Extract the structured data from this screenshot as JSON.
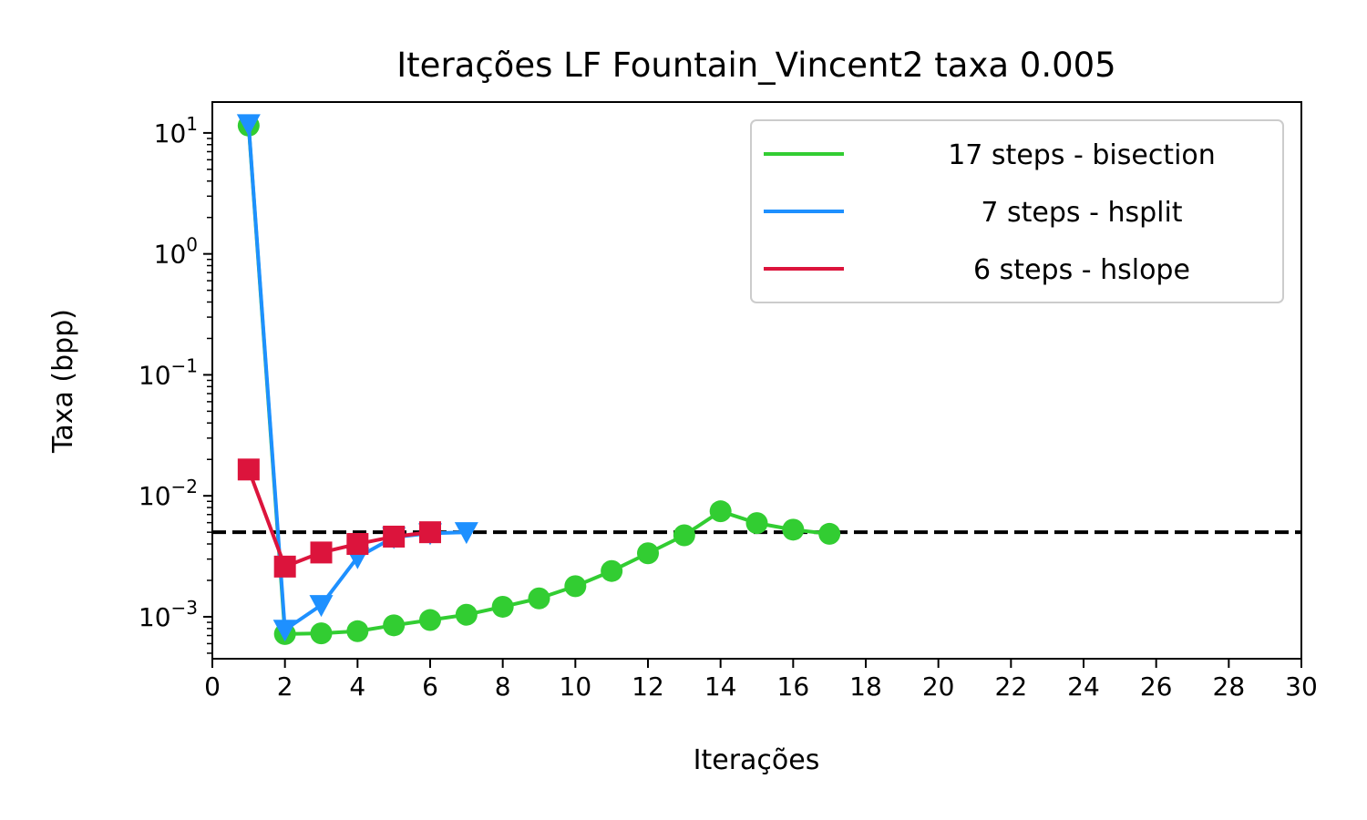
{
  "chart_data": {
    "type": "line",
    "title": "Iterações LF Fountain_Vincent2 taxa 0.005",
    "xlabel": "Iterações",
    "ylabel": "Taxa (bpp)",
    "xlim": [
      0,
      30
    ],
    "ylim": [
      0.00045,
      18
    ],
    "yscale": "log",
    "xticks": [
      0,
      2,
      4,
      6,
      8,
      10,
      12,
      14,
      16,
      18,
      20,
      22,
      24,
      26,
      28,
      30
    ],
    "yticks": [
      {
        "value": 0.001,
        "base": "10",
        "exp": "−3"
      },
      {
        "value": 0.01,
        "base": "10",
        "exp": "−2"
      },
      {
        "value": 0.1,
        "base": "10",
        "exp": "−1"
      },
      {
        "value": 1,
        "base": "10",
        "exp": "0"
      },
      {
        "value": 10,
        "base": "10",
        "exp": "1"
      }
    ],
    "grid": false,
    "legend_position": "top-right",
    "target_line": {
      "y": 0.005,
      "style": "dashed",
      "color": "#000000"
    },
    "series": [
      {
        "name": "17 steps - bisection",
        "color": "#32cd32",
        "marker": "circle",
        "x": [
          1,
          2,
          3,
          4,
          5,
          6,
          7,
          8,
          9,
          10,
          11,
          12,
          13,
          14,
          15,
          16,
          17
        ],
        "y": [
          11.5,
          0.00072,
          0.00073,
          0.00076,
          0.00085,
          0.00094,
          0.00104,
          0.00121,
          0.00142,
          0.00179,
          0.00239,
          0.00335,
          0.00472,
          0.00745,
          0.00595,
          0.00525,
          0.00485
        ]
      },
      {
        "name": "7 steps - hsplit",
        "color": "#1e90ff",
        "marker": "triangle-down",
        "x": [
          1,
          2,
          3,
          4,
          5,
          6,
          7
        ],
        "y": [
          11.8,
          0.00078,
          0.00125,
          0.0031,
          0.00455,
          0.0049,
          0.005
        ]
      },
      {
        "name": "6 steps - hslope",
        "color": "#dc143c",
        "marker": "square",
        "x": [
          1,
          2,
          3,
          4,
          5,
          6
        ],
        "y": [
          0.0165,
          0.0026,
          0.0034,
          0.004,
          0.0046,
          0.005
        ]
      }
    ]
  }
}
